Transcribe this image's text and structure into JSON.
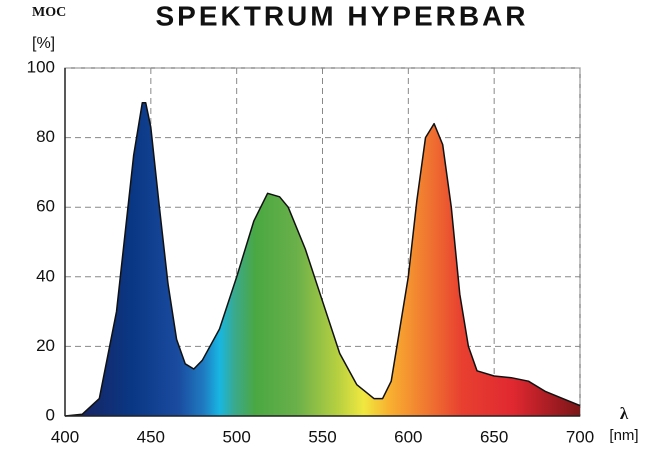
{
  "chart_data": {
    "type": "area",
    "title": "SPEKTRUM HYPERBAR",
    "ylabel": "MOC",
    "yunit": "[%]",
    "xlabel": "λ",
    "xunit": "[nm]",
    "x": [
      400,
      410,
      420,
      430,
      440,
      445,
      447,
      450,
      455,
      460,
      465,
      470,
      475,
      480,
      490,
      500,
      510,
      518,
      525,
      530,
      540,
      550,
      560,
      570,
      580,
      585,
      590,
      600,
      605,
      610,
      615,
      620,
      625,
      630,
      635,
      640,
      650,
      660,
      670,
      680,
      690,
      700
    ],
    "series": [
      {
        "values": [
          0,
          0.5,
          5,
          30,
          75,
          90,
          90,
          83,
          60,
          38,
          22,
          15,
          13.5,
          16,
          25,
          40,
          56,
          64,
          63,
          60,
          48,
          33,
          18,
          9,
          5,
          5,
          10,
          40,
          62,
          80,
          84,
          78,
          60,
          35,
          20,
          13,
          11.5,
          11,
          10,
          7,
          5,
          3
        ],
        "color": "#111111"
      }
    ],
    "xlim": [
      400,
      700
    ],
    "xticks": [
      400,
      450,
      500,
      550,
      600,
      650,
      700
    ],
    "ylim": [
      0,
      100
    ],
    "yticks": [
      0,
      20,
      40,
      60,
      80,
      100
    ],
    "grid": true
  }
}
